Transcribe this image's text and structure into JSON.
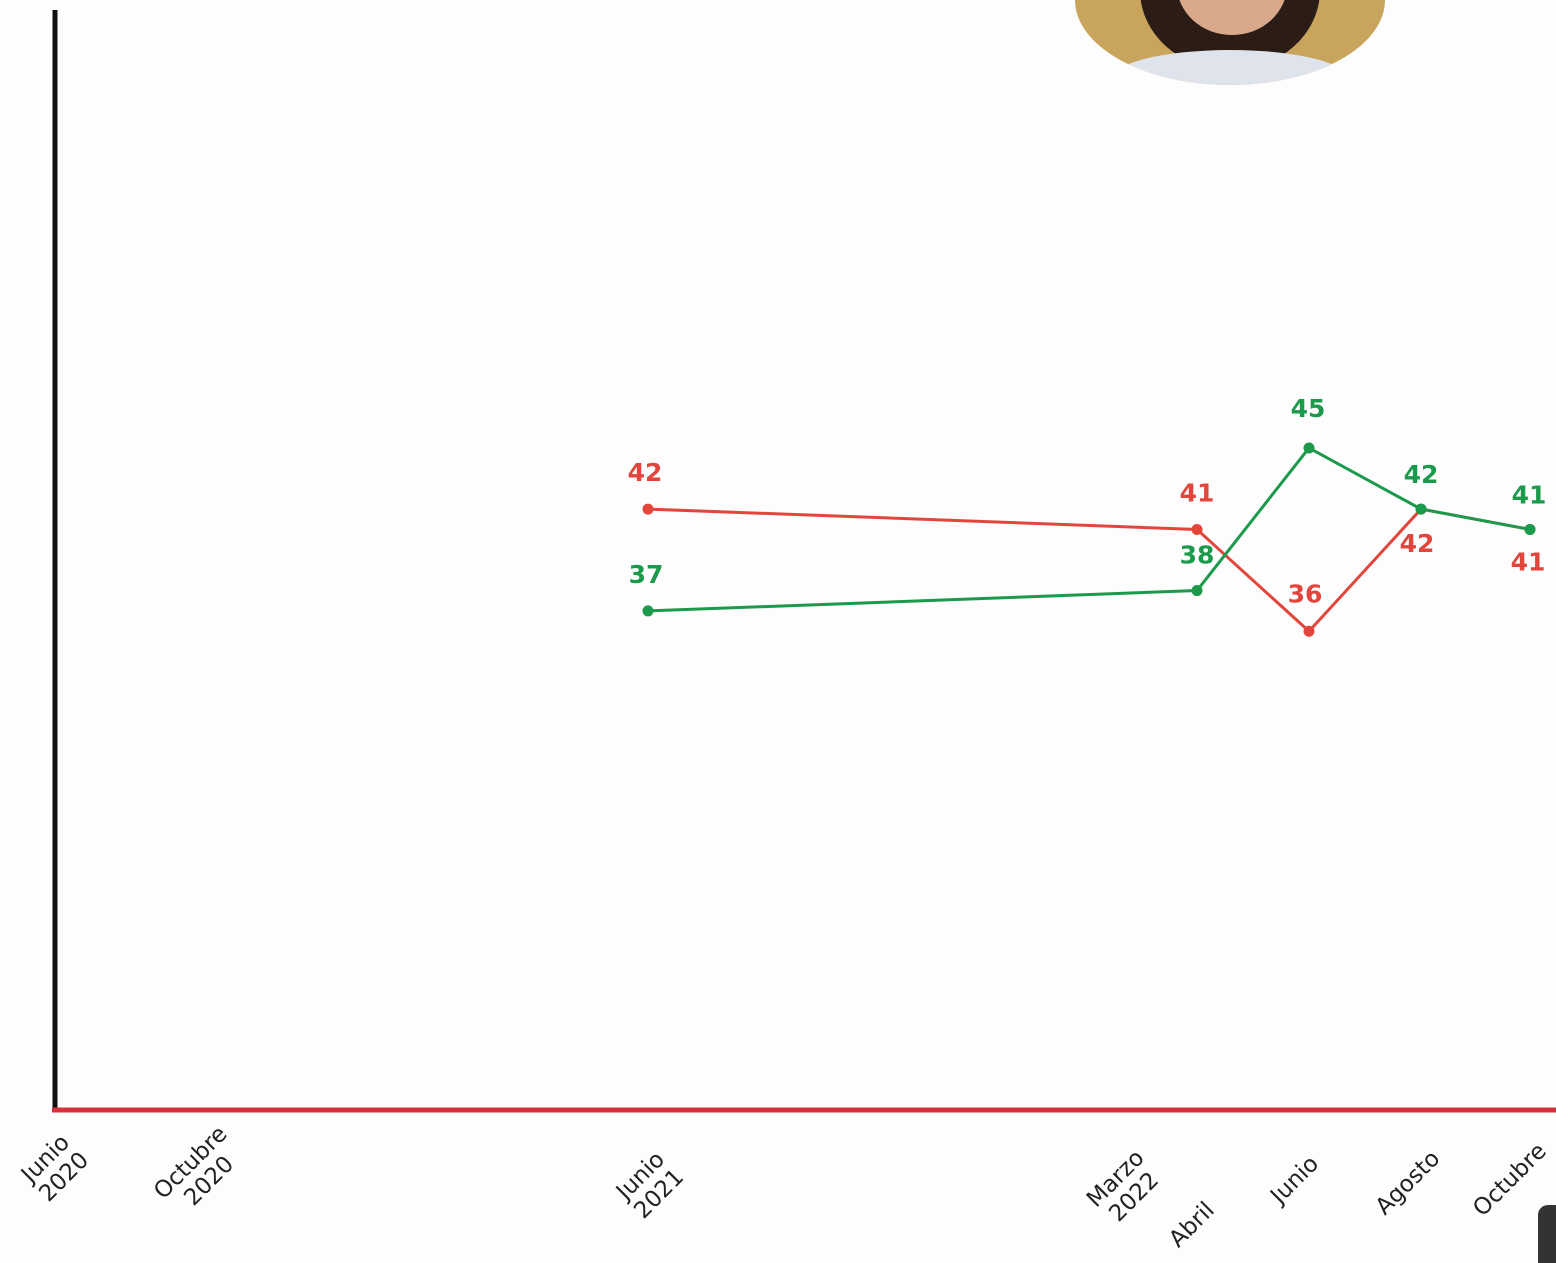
{
  "chart_data": {
    "type": "line",
    "categories": [
      "Junio\n2020",
      "Octubre\n2020",
      "Junio\n2021",
      "Marzo\n2022",
      "Abril",
      "Junio",
      "Agosto",
      "Octubre"
    ],
    "series": [
      {
        "color": "#e2453b",
        "values": [
          null,
          null,
          42,
          null,
          41,
          36,
          42,
          41
        ]
      },
      {
        "color": "#1b9a4c",
        "values": [
          null,
          null,
          37,
          null,
          38,
          45,
          42,
          41
        ]
      }
    ],
    "ylim": [
      12.5,
      66.5
    ]
  }
}
